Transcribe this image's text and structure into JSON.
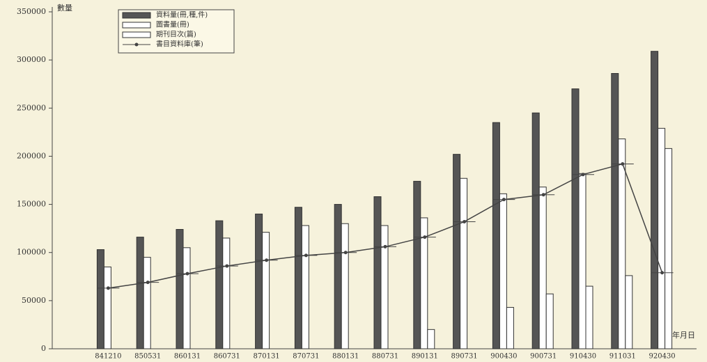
{
  "chart_data": {
    "type": "bar-line",
    "y_label": "數量",
    "x_label": "年月日",
    "categories": [
      "841210",
      "850531",
      "860131",
      "860731",
      "870131",
      "870731",
      "880131",
      "880731",
      "890131",
      "890731",
      "900430",
      "900731",
      "910430",
      "911031",
      "920430"
    ],
    "series": [
      {
        "name": "資料量(冊,種,件)",
        "kind": "bar",
        "color": "#555555",
        "values": [
          103000,
          116000,
          124000,
          133000,
          140000,
          147000,
          150000,
          158000,
          174000,
          202000,
          235000,
          245000,
          270000,
          286000,
          309000
        ]
      },
      {
        "name": "圖書量(冊)",
        "kind": "bar",
        "color": "#ffffff",
        "values": [
          85000,
          95000,
          105000,
          115000,
          121000,
          128000,
          130000,
          128000,
          136000,
          177000,
          161000,
          168000,
          182000,
          218000,
          229000
        ]
      },
      {
        "name": "期刊目次(篇)",
        "kind": "bar",
        "color": "#ffffff",
        "values": [
          null,
          null,
          null,
          null,
          null,
          null,
          null,
          null,
          20000,
          null,
          43000,
          57000,
          65000,
          76000,
          208000
        ]
      },
      {
        "name": "書目資料庫(筆)",
        "kind": "line",
        "color": "#444444",
        "values": [
          63000,
          69000,
          78000,
          86000,
          92000,
          97000,
          100000,
          106000,
          116000,
          132000,
          155000,
          160000,
          181000,
          192000,
          79000
        ]
      }
    ],
    "ylim": [
      0,
      350000
    ],
    "yticks": [
      0,
      50000,
      100000,
      150000,
      200000,
      250000,
      300000,
      350000
    ]
  }
}
